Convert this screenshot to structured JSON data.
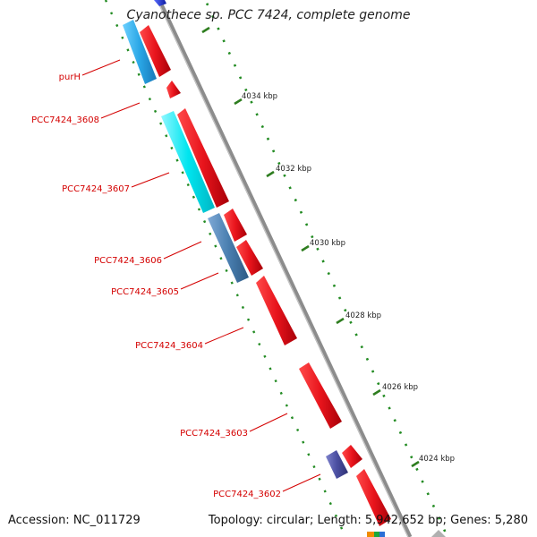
{
  "title": "Cyanothece sp. PCC 7424, complete genome",
  "accession": "Accession: NC_011729",
  "summary": "Topology: circular; Length: 5,942,652 bp; Genes: 5,280",
  "scale_labels": [
    "4034 kbp",
    "4032 kbp",
    "4030 kbp",
    "4028 kbp",
    "4026 kbp",
    "4024 kbp"
  ],
  "gene_labels": [
    "purH",
    "PCC7424_3608",
    "PCC7424_3607",
    "PCC7424_3606",
    "PCC7424_3605",
    "PCC7424_3604",
    "PCC7424_3603",
    "PCC7424_3602"
  ],
  "colors": {
    "backbone": "#8c8c8c",
    "forward_gene": "#e8141c",
    "reverse_cyan": "#00e5ef",
    "reverse_blue": "#2aa7e6",
    "reverse_steel": "#4a7fb0",
    "reverse_indigo": "#4a4ea0",
    "reverse_navy": "#1426c8",
    "label_text": "#d40000",
    "track_dots": "#228b22"
  }
}
